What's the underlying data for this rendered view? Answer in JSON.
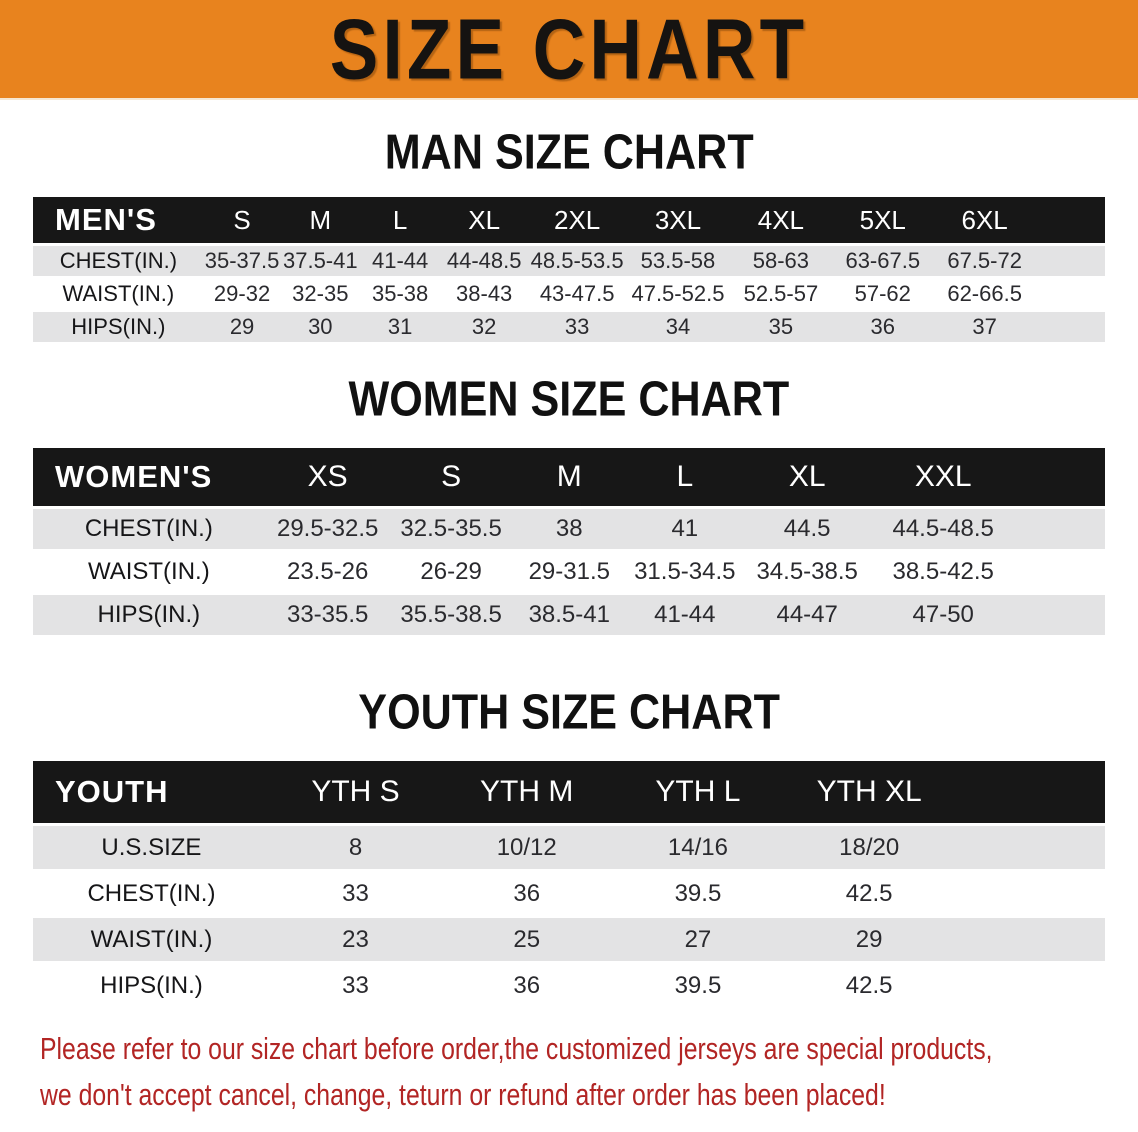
{
  "banner": {
    "title": "SIZE CHART",
    "bg_color": "#e8831e",
    "text_color": "#151311"
  },
  "sections": [
    {
      "heading": "MAN SIZE CHART",
      "table": {
        "name": "mens",
        "columns": [
          "MEN'S",
          "S",
          "M",
          "L",
          "XL",
          "2XL",
          "3XL",
          "4XL",
          "5XL",
          "6XL"
        ],
        "rows": [
          [
            "CHEST(IN.)",
            "35-37.5",
            "37.5-41",
            "41-44",
            "44-48.5",
            "48.5-53.5",
            "53.5-58",
            "58-63",
            "63-67.5",
            "67.5-72"
          ],
          [
            "WAIST(IN.)",
            "29-32",
            "32-35",
            "35-38",
            "38-43",
            "43-47.5",
            "47.5-52.5",
            "52.5-57",
            "57-62",
            "62-66.5"
          ],
          [
            "HIPS(IN.)",
            "29",
            "30",
            "31",
            "32",
            "33",
            "34",
            "35",
            "36",
            "37"
          ]
        ]
      }
    },
    {
      "heading": "WOMEN SIZE CHART",
      "table": {
        "name": "womens",
        "columns": [
          "WOMEN'S",
          "XS",
          "S",
          "M",
          "L",
          "XL",
          "XXL"
        ],
        "rows": [
          [
            "CHEST(IN.)",
            "29.5-32.5",
            "32.5-35.5",
            "38",
            "41",
            "44.5",
            "44.5-48.5"
          ],
          [
            "WAIST(IN.)",
            "23.5-26",
            "26-29",
            "29-31.5",
            "31.5-34.5",
            "34.5-38.5",
            "38.5-42.5"
          ],
          [
            "HIPS(IN.)",
            "33-35.5",
            "35.5-38.5",
            "38.5-41",
            "41-44",
            "44-47",
            "47-50"
          ]
        ]
      }
    },
    {
      "heading": "YOUTH SIZE CHART",
      "table": {
        "name": "youth",
        "columns": [
          "YOUTH",
          "YTH S",
          "YTH M",
          "YTH L",
          "YTH XL"
        ],
        "rows": [
          [
            "U.S.SIZE",
            "8",
            "10/12",
            "14/16",
            "18/20"
          ],
          [
            "CHEST(IN.)",
            "33",
            "36",
            "39.5",
            "42.5"
          ],
          [
            "WAIST(IN.)",
            "23",
            "25",
            "27",
            "29"
          ],
          [
            "HIPS(IN.)",
            "33",
            "36",
            "39.5",
            "42.5"
          ]
        ]
      }
    }
  ],
  "disclaimer": {
    "lines": [
      "Please refer to our size chart before order,the customized jerseys are special products,",
      "we don't accept cancel, change, teturn or refund after order has been placed!"
    ],
    "text_color": "#b22524"
  },
  "colors": {
    "banner_bg": "#e8831e",
    "table_header_bg": "#171717",
    "row_alt_bg": "#e3e3e4",
    "disclaimer_text": "#b22524"
  }
}
